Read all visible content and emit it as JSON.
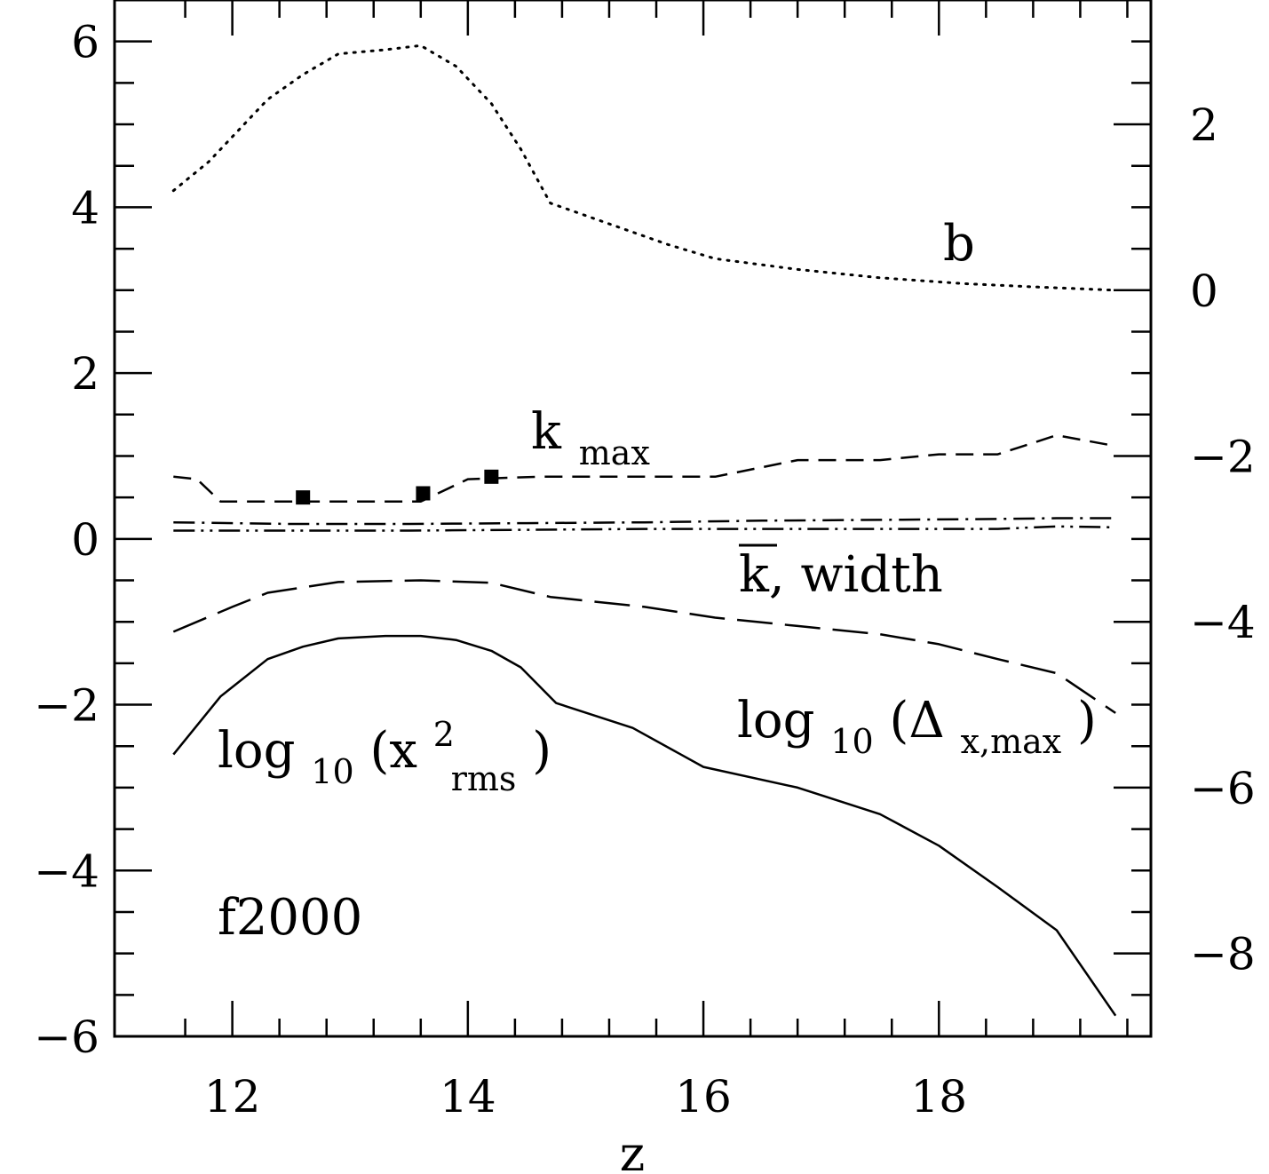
{
  "chart_data": {
    "type": "line",
    "title": "",
    "xlabel": "z",
    "ylabel_left": "",
    "ylabel_right": "",
    "xlim": [
      11.0,
      19.8
    ],
    "ylim_left": [
      -6,
      6.5
    ],
    "ylim_right": [
      -9,
      3.5
    ],
    "x_ticks": [
      12,
      14,
      16,
      18
    ],
    "x_tick_labels": [
      "12",
      "14",
      "16",
      "18"
    ],
    "y_left_ticks": [
      -6,
      -4,
      -2,
      0,
      2,
      4,
      6
    ],
    "y_left_tick_labels": [
      "−6",
      "−4",
      "−2",
      "0",
      "2",
      "4",
      "6"
    ],
    "y_right_ticks": [
      -8,
      -6,
      -4,
      -2,
      0,
      2
    ],
    "y_right_tick_labels": [
      "−8",
      "−6",
      "−4",
      "−2",
      "0",
      "2"
    ],
    "annotations": {
      "b": "b",
      "kmax_main": "k",
      "kmax_sub": "max",
      "kbar_main": "k, width",
      "logdx_pre": "log",
      "logdx_base": "10",
      "logdx_open": "(Δ",
      "logdx_sub": "x,max",
      "logdx_close": ")",
      "logx_pre": "log",
      "logx_base": "10",
      "logx_open": "(x",
      "logx_sup": "2",
      "logx_sub": "rms",
      "logx_close": ")",
      "run": "f2000"
    },
    "series": [
      {
        "name": "b",
        "style": "dotted",
        "axis": "right",
        "x": [
          11.5,
          11.8,
          12.1,
          12.3,
          12.6,
          12.9,
          13.3,
          13.6,
          13.9,
          14.2,
          14.45,
          14.7,
          15.2,
          15.7,
          16.1,
          16.8,
          17.5,
          18.2,
          18.8,
          19.5
        ],
        "y": [
          1.2,
          1.55,
          2.0,
          2.3,
          2.6,
          2.85,
          2.9,
          2.95,
          2.7,
          2.25,
          1.7,
          1.05,
          0.8,
          0.55,
          0.38,
          0.25,
          0.15,
          0.08,
          0.04,
          0.0
        ]
      },
      {
        "name": "k_max",
        "style": "short-dashed",
        "axis": "left",
        "x": [
          11.5,
          11.7,
          11.9,
          12.3,
          13.0,
          13.6,
          14.0,
          14.6,
          15.2,
          16.1,
          16.8,
          17.5,
          18.0,
          18.5,
          19.0,
          19.5
        ],
        "y": [
          0.75,
          0.72,
          0.45,
          0.45,
          0.45,
          0.45,
          0.72,
          0.75,
          0.75,
          0.75,
          0.95,
          0.95,
          1.02,
          1.02,
          1.25,
          1.12
        ]
      },
      {
        "name": "k_max markers",
        "style": "markers",
        "axis": "left",
        "x": [
          12.6,
          13.62,
          14.2
        ],
        "y": [
          0.5,
          0.55,
          0.75
        ]
      },
      {
        "name": "k_bar",
        "style": "dash-dot",
        "axis": "left",
        "x": [
          11.5,
          12.5,
          13.5,
          14.5,
          15.5,
          16.5,
          17.5,
          18.5,
          19.0,
          19.5
        ],
        "y": [
          0.2,
          0.18,
          0.18,
          0.19,
          0.2,
          0.22,
          0.23,
          0.24,
          0.25,
          0.25
        ]
      },
      {
        "name": "width",
        "style": "dash-dot-dot",
        "axis": "left",
        "x": [
          11.5,
          12.5,
          13.5,
          14.5,
          15.5,
          16.5,
          17.5,
          18.5,
          19.0,
          19.5
        ],
        "y": [
          0.1,
          0.1,
          0.1,
          0.11,
          0.12,
          0.12,
          0.12,
          0.12,
          0.15,
          0.14
        ]
      },
      {
        "name": "log10(Δx,max)",
        "style": "long-dashed",
        "axis": "left",
        "x": [
          11.5,
          12.0,
          12.3,
          12.9,
          13.6,
          14.2,
          14.7,
          15.5,
          16.1,
          16.8,
          17.5,
          18.0,
          18.5,
          19.0,
          19.5
        ],
        "y": [
          -1.12,
          -0.82,
          -0.65,
          -0.52,
          -0.5,
          -0.53,
          -0.7,
          -0.82,
          -0.95,
          -1.05,
          -1.15,
          -1.27,
          -1.45,
          -1.62,
          -2.1
        ]
      },
      {
        "name": "log10(x²rms)",
        "style": "solid",
        "axis": "left",
        "x": [
          11.5,
          11.9,
          12.3,
          12.6,
          12.9,
          13.3,
          13.6,
          13.9,
          14.2,
          14.45,
          14.75,
          15.4,
          16.0,
          16.8,
          17.5,
          18.0,
          18.5,
          19.0,
          19.5
        ],
        "y": [
          -2.6,
          -1.9,
          -1.45,
          -1.3,
          -1.2,
          -1.17,
          -1.17,
          -1.22,
          -1.35,
          -1.55,
          -1.98,
          -2.28,
          -2.75,
          -3.0,
          -3.32,
          -3.7,
          -4.2,
          -4.72,
          -5.75
        ]
      }
    ]
  }
}
